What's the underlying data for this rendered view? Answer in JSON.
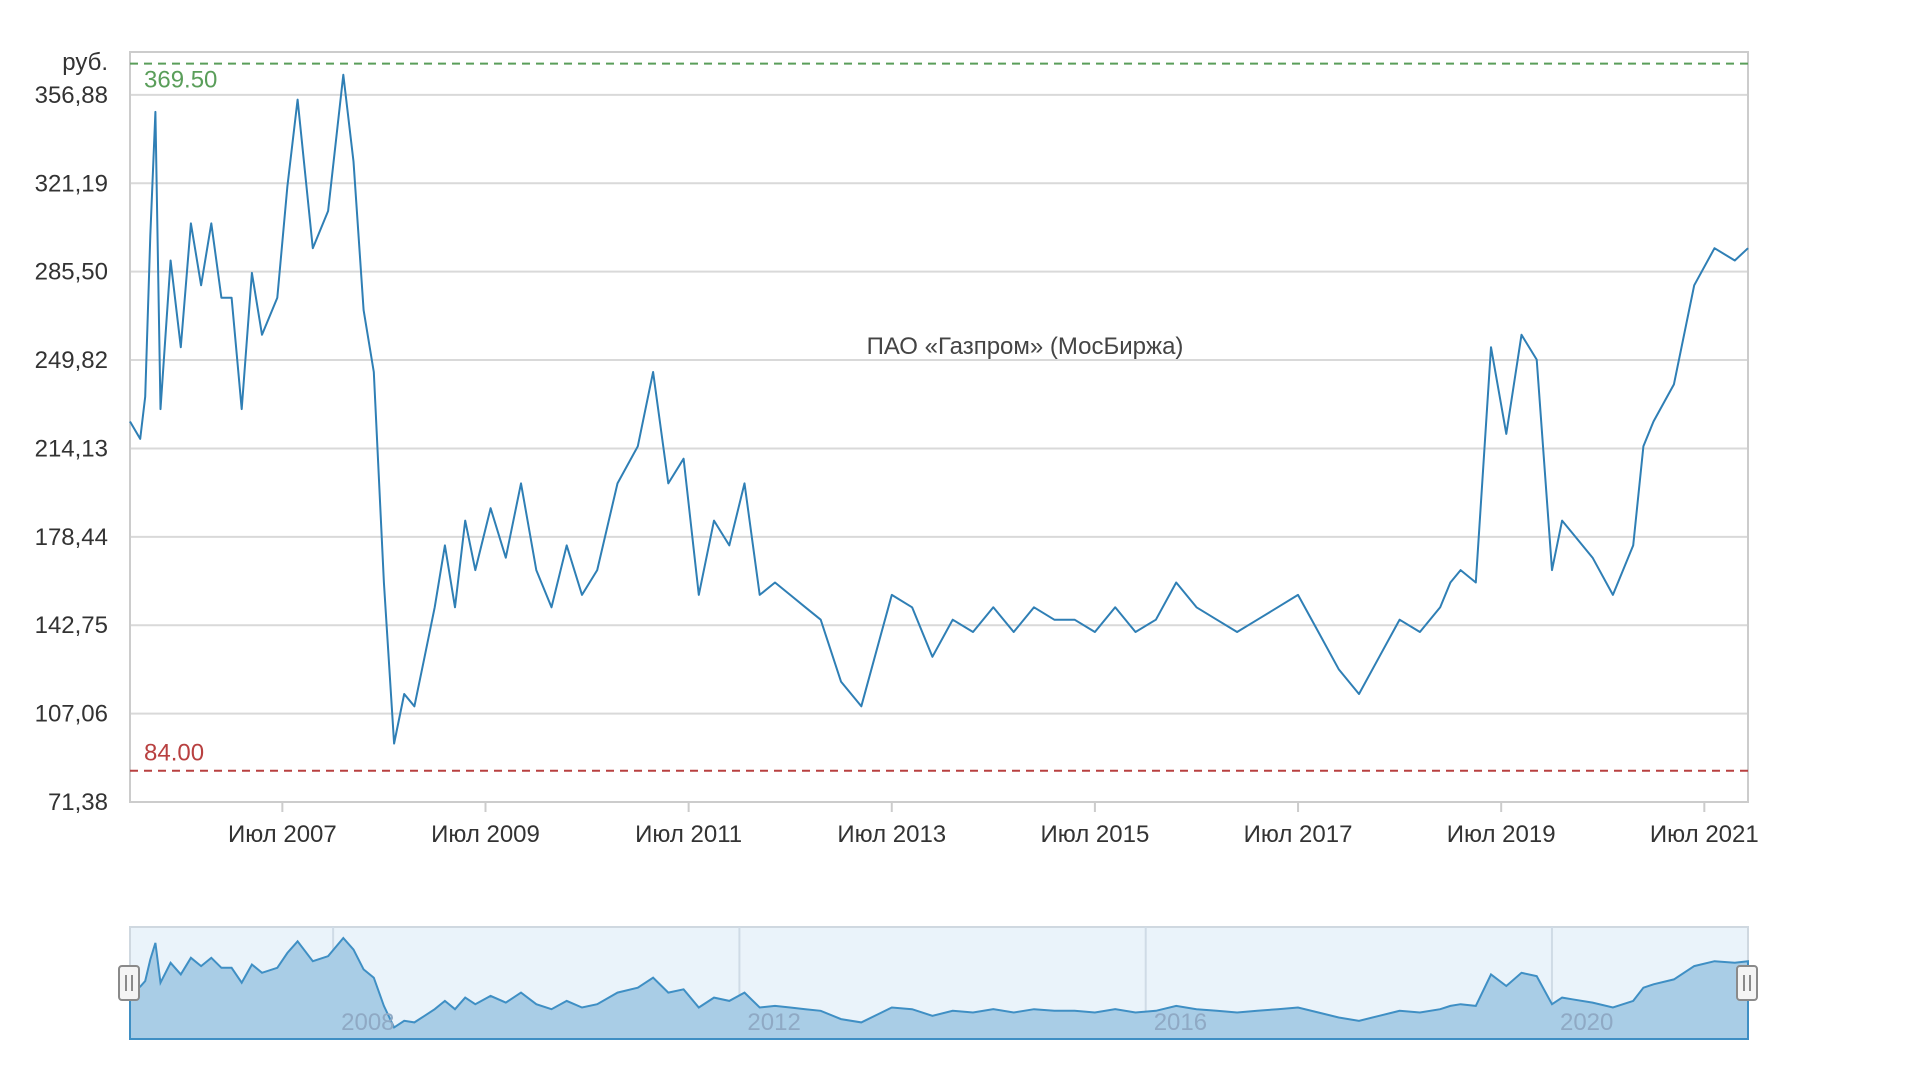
{
  "chart_data": {
    "type": "line",
    "title": "ПАО «Газпром» (МосБиржа)",
    "ylabel": "руб.",
    "xlabel": "",
    "ylim": [
      71.38,
      374.2
    ],
    "xlim": [
      2006.0,
      2021.93
    ],
    "y_ticks": [
      "71,38",
      "107,06",
      "142,75",
      "178,44",
      "214,13",
      "249,82",
      "285,50",
      "321,19",
      "356,88"
    ],
    "y_tick_values": [
      71.38,
      107.06,
      142.75,
      178.44,
      214.13,
      249.82,
      285.5,
      321.19,
      356.88
    ],
    "x_ticks": [
      "Июл 2007",
      "Июл 2009",
      "Июл 2011",
      "Июл 2013",
      "Июл 2015",
      "Июл 2017",
      "Июл 2019",
      "Июл 2021"
    ],
    "x_tick_values": [
      2007.5,
      2009.5,
      2011.5,
      2013.5,
      2015.5,
      2017.5,
      2019.5,
      2021.5
    ],
    "grid": true,
    "reference_lines": [
      {
        "label": "369.50",
        "value": 369.5,
        "color": "#5a9e5a"
      },
      {
        "label": "84.00",
        "value": 84.0,
        "color": "#b84040"
      }
    ],
    "series": [
      {
        "color": "#2f7fb5",
        "x": [
          2006.0,
          2006.1,
          2006.15,
          2006.2,
          2006.25,
          2006.3,
          2006.4,
          2006.5,
          2006.6,
          2006.7,
          2006.8,
          2006.9,
          2007.0,
          2007.1,
          2007.2,
          2007.3,
          2007.45,
          2007.55,
          2007.65,
          2007.8,
          2007.95,
          2008.1,
          2008.2,
          2008.3,
          2008.4,
          2008.5,
          2008.6,
          2008.7,
          2008.8,
          2008.9,
          2009.0,
          2009.1,
          2009.2,
          2009.3,
          2009.4,
          2009.55,
          2009.7,
          2009.85,
          2010.0,
          2010.15,
          2010.3,
          2010.45,
          2010.6,
          2010.8,
          2011.0,
          2011.15,
          2011.3,
          2011.45,
          2011.6,
          2011.75,
          2011.9,
          2012.05,
          2012.2,
          2012.35,
          2012.5,
          2012.65,
          2012.8,
          2013.0,
          2013.2,
          2013.4,
          2013.5,
          2013.7,
          2013.9,
          2014.1,
          2014.3,
          2014.5,
          2014.7,
          2014.9,
          2015.1,
          2015.3,
          2015.5,
          2015.7,
          2015.9,
          2016.1,
          2016.3,
          2016.5,
          2016.7,
          2016.9,
          2017.1,
          2017.3,
          2017.5,
          2017.7,
          2017.9,
          2018.1,
          2018.3,
          2018.5,
          2018.7,
          2018.9,
          2019.0,
          2019.1,
          2019.25,
          2019.4,
          2019.55,
          2019.7,
          2019.85,
          2020.0,
          2020.1,
          2020.2,
          2020.4,
          2020.6,
          2020.8,
          2020.9,
          2021.0,
          2021.2,
          2021.4,
          2021.6,
          2021.8,
          2021.93
        ],
        "values": [
          225,
          218,
          235,
          300,
          350,
          230,
          290,
          255,
          305,
          280,
          305,
          275,
          275,
          230,
          285,
          260,
          275,
          320,
          355,
          295,
          310,
          365,
          330,
          270,
          245,
          160,
          95,
          115,
          110,
          130,
          150,
          175,
          150,
          185,
          165,
          190,
          170,
          200,
          165,
          150,
          175,
          155,
          165,
          200,
          215,
          245,
          200,
          210,
          155,
          185,
          175,
          200,
          155,
          160,
          155,
          150,
          145,
          120,
          110,
          140,
          155,
          150,
          130,
          145,
          140,
          150,
          140,
          150,
          145,
          145,
          140,
          150,
          140,
          145,
          160,
          150,
          145,
          140,
          145,
          150,
          155,
          140,
          125,
          115,
          130,
          145,
          140,
          150,
          160,
          165,
          160,
          255,
          220,
          260,
          250,
          165,
          185,
          180,
          170,
          155,
          175,
          215,
          225,
          240,
          280,
          295,
          290,
          295
        ]
      }
    ],
    "navigator": {
      "x_labels": [
        "2008",
        "2012",
        "2016",
        "2020"
      ],
      "x_label_values": [
        2008.0,
        2012.0,
        2016.0,
        2020.0
      ]
    }
  }
}
